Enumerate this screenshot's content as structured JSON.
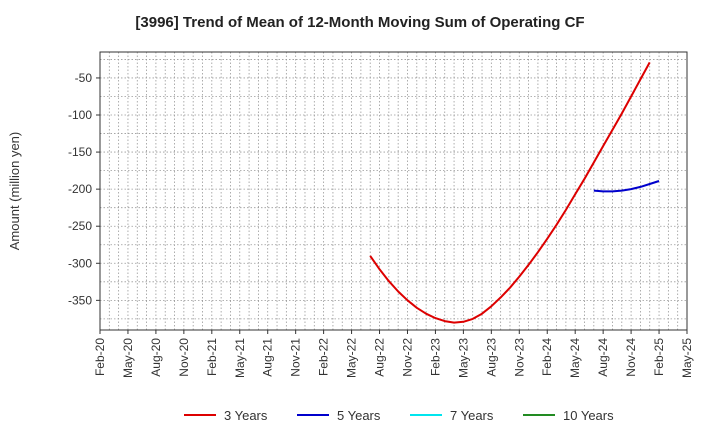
{
  "chart_data": {
    "type": "line",
    "title": "[3996]  Trend of Mean of 12-Month Moving Sum of Operating CF",
    "ylabel": "Amount (million yen)",
    "xlabel": "",
    "ylim": [
      -390,
      -15
    ],
    "y_ticks": [
      -50,
      -100,
      -150,
      -200,
      -250,
      -300,
      -350
    ],
    "x_tick_labels": [
      "Feb-20",
      "May-20",
      "Aug-20",
      "Nov-20",
      "Feb-21",
      "May-21",
      "Aug-21",
      "Nov-21",
      "Feb-22",
      "May-22",
      "Aug-22",
      "Nov-22",
      "Feb-23",
      "May-23",
      "Aug-23",
      "Nov-23",
      "Feb-24",
      "May-24",
      "Aug-24",
      "Nov-24",
      "Feb-25",
      "May-25"
    ],
    "grid": true,
    "legend_position": "bottom",
    "series": [
      {
        "name": "3 Years",
        "color": "#dd0000",
        "points": [
          [
            "Jul-22",
            -290
          ],
          [
            "Aug-22",
            -308
          ],
          [
            "Sep-22",
            -324
          ],
          [
            "Oct-22",
            -338
          ],
          [
            "Nov-22",
            -350
          ],
          [
            "Dec-22",
            -360
          ],
          [
            "Jan-23",
            -368
          ],
          [
            "Feb-23",
            -374
          ],
          [
            "Mar-23",
            -378
          ],
          [
            "Apr-23",
            -380
          ],
          [
            "May-23",
            -379
          ],
          [
            "Jun-23",
            -375
          ],
          [
            "Jul-23",
            -368
          ],
          [
            "Aug-23",
            -358
          ],
          [
            "Sep-23",
            -346
          ],
          [
            "Oct-23",
            -333
          ],
          [
            "Nov-23",
            -318
          ],
          [
            "Dec-23",
            -302
          ],
          [
            "Jan-24",
            -285
          ],
          [
            "Feb-24",
            -267
          ],
          [
            "Mar-24",
            -248
          ],
          [
            "Apr-24",
            -228
          ],
          [
            "May-24",
            -207
          ],
          [
            "Jun-24",
            -186
          ],
          [
            "Jul-24",
            -164
          ],
          [
            "Aug-24",
            -142
          ],
          [
            "Sep-24",
            -120
          ],
          [
            "Oct-24",
            -98
          ],
          [
            "Nov-24",
            -75
          ],
          [
            "Dec-24",
            -52
          ],
          [
            "Jan-25",
            -29
          ]
        ]
      },
      {
        "name": "5 Years",
        "color": "#0000cc",
        "points": [
          [
            "Jul-24",
            -202
          ],
          [
            "Aug-24",
            -203
          ],
          [
            "Sep-24",
            -203
          ],
          [
            "Oct-24",
            -202
          ],
          [
            "Nov-24",
            -200
          ],
          [
            "Dec-24",
            -197
          ],
          [
            "Jan-25",
            -193
          ],
          [
            "Feb-25",
            -189
          ]
        ]
      },
      {
        "name": "7 Years",
        "color": "#00e5ee",
        "points": []
      },
      {
        "name": "10 Years",
        "color": "#228b22",
        "points": []
      }
    ]
  }
}
